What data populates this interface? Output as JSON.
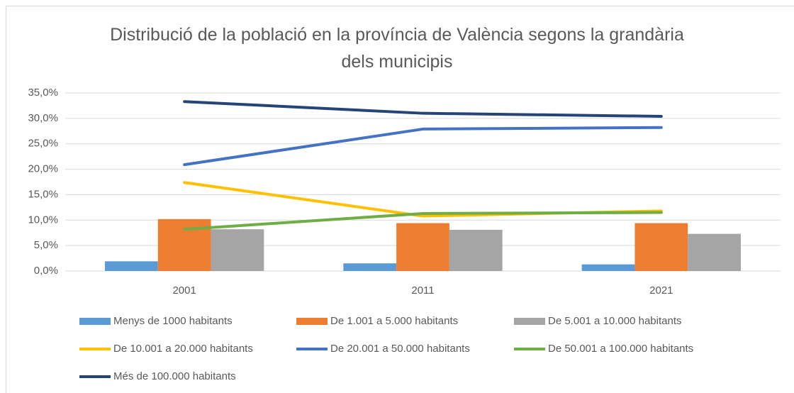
{
  "chart_data": {
    "type": "combo",
    "title": "Distribució de la població en la província de València segons la grandària dels municipis",
    "categories": [
      "2001",
      "2011",
      "2021"
    ],
    "series": [
      {
        "name": "Menys de 1000 habitants",
        "type": "bar",
        "color": "#5b9bd5",
        "values": [
          1.9,
          1.5,
          1.3
        ]
      },
      {
        "name": "De 1.001 a 5.000 habitants",
        "type": "bar",
        "color": "#ed7d31",
        "values": [
          10.2,
          9.4,
          9.4
        ]
      },
      {
        "name": "De 5.001 a 10.000 habitants",
        "type": "bar",
        "color": "#a5a5a5",
        "values": [
          8.2,
          8.1,
          7.3
        ]
      },
      {
        "name": "De 10.001 a 20.000 habitants",
        "type": "line",
        "color": "#ffc000",
        "values": [
          17.4,
          10.8,
          11.8
        ]
      },
      {
        "name": "De 20.001 a 50.000 habitants",
        "type": "line",
        "color": "#4472c4",
        "values": [
          20.9,
          27.9,
          28.2
        ]
      },
      {
        "name": "De 50.001 a 100.000 habitants",
        "type": "line",
        "color": "#70ad47",
        "values": [
          8.2,
          11.3,
          11.5
        ]
      },
      {
        "name": "Més de 100.000 habitants",
        "type": "line",
        "color": "#264478",
        "values": [
          33.3,
          31.0,
          30.4
        ]
      }
    ],
    "ylim": [
      0,
      35
    ],
    "yticks": [
      {
        "value": 0,
        "label": "0,0%"
      },
      {
        "value": 5,
        "label": "5,0%"
      },
      {
        "value": 10,
        "label": "10,0%"
      },
      {
        "value": 15,
        "label": "15,0%"
      },
      {
        "value": 20,
        "label": "20,0%"
      },
      {
        "value": 25,
        "label": "25,0%"
      },
      {
        "value": 30,
        "label": "30,0%"
      },
      {
        "value": 35,
        "label": "35,0%"
      }
    ],
    "grid": true,
    "legend": "bottom"
  }
}
